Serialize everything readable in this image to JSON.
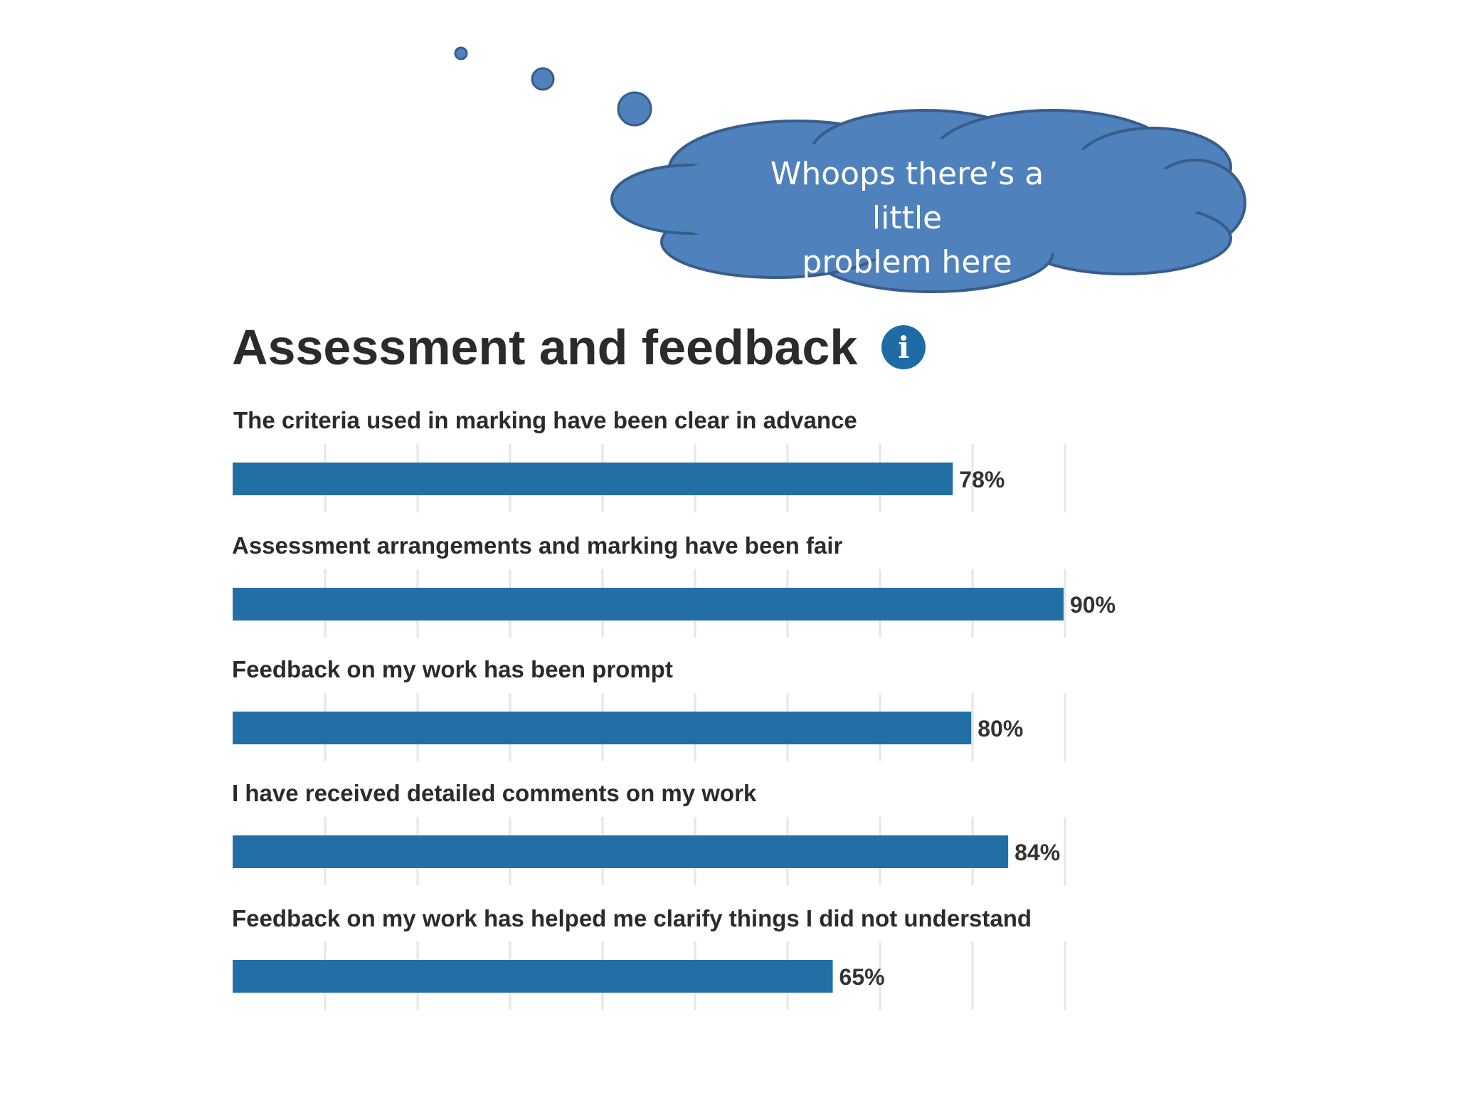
{
  "thought_bubble": {
    "line1": "Whoops there’s a little",
    "line2": "problem here",
    "fill_color": "#4f81bd",
    "stroke_color": "#385d8a"
  },
  "heading": {
    "title": "Assessment and feedback",
    "info_icon": "info-icon",
    "info_glyph": "i"
  },
  "chart_data": {
    "type": "bar",
    "orientation": "horizontal",
    "categories": [
      "The criteria used in marking have been clear in advance",
      "Assessment arrangements and marking have been fair",
      "Feedback on my work has been prompt",
      "I have received detailed comments on my work",
      "Feedback on my work has helped me clarify things I did not understand"
    ],
    "values": [
      78,
      90,
      80,
      84,
      65
    ],
    "value_labels": [
      "78%",
      "90%",
      "80%",
      "84%",
      "65%"
    ],
    "xlim": [
      0,
      90
    ],
    "grid": true,
    "bar_color": "#226fa5"
  }
}
